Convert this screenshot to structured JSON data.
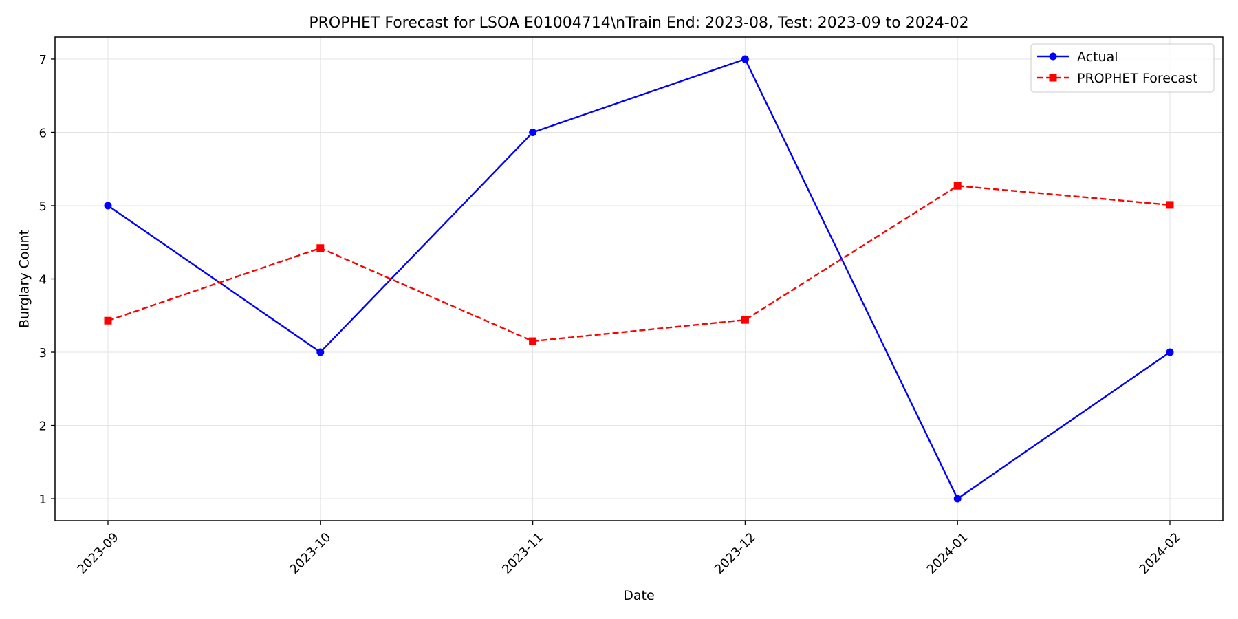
{
  "chart_data": {
    "type": "line",
    "title": "PROPHET Forecast for LSOA E01004714\\nTrain End: 2023-08, Test: 2023-09 to 2024-02",
    "xlabel": "Date",
    "ylabel": "Burglary Count",
    "categories": [
      "2023-09",
      "2023-10",
      "2023-11",
      "2023-12",
      "2024-01",
      "2024-02"
    ],
    "x": [
      "2023-09-01",
      "2023-10-01",
      "2023-11-01",
      "2023-12-01",
      "2024-01-01",
      "2024-02-01"
    ],
    "ylim": [
      0.7,
      7.3
    ],
    "yticks": [
      1,
      2,
      3,
      4,
      5,
      6,
      7
    ],
    "grid": true,
    "legend_position": "top-right",
    "series": [
      {
        "name": "Actual",
        "values": [
          5,
          3,
          6,
          7,
          1,
          3
        ],
        "color": "#0000ff",
        "line_style": "solid",
        "marker": "circle"
      },
      {
        "name": "PROPHET Forecast",
        "values": [
          3.43,
          4.42,
          3.15,
          3.44,
          5.27,
          5.01
        ],
        "color": "#ff0000",
        "line_style": "dashed",
        "marker": "square"
      }
    ]
  }
}
